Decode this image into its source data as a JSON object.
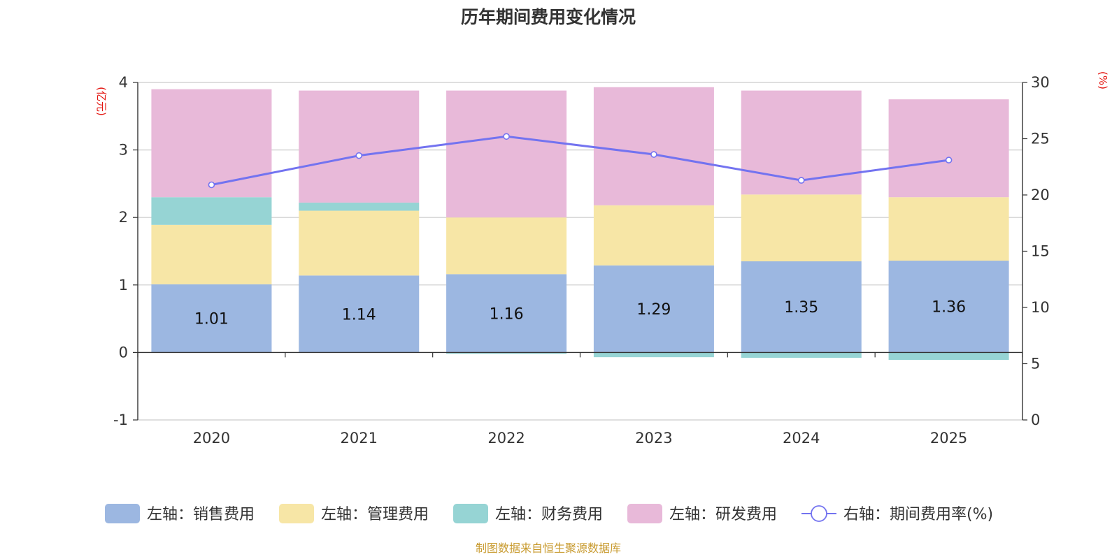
{
  "colors": {
    "sales": "#9cb7e1",
    "admin": "#f7e6a6",
    "finance": "#96d4d4",
    "rnd": "#e8b9d9",
    "rate_line": "#7373f0",
    "unit_text": "#e3130e",
    "source_text": "#c89a2e"
  },
  "chart_data": {
    "type": "bar",
    "stacked": true,
    "title": "历年期间费用变化情况",
    "categories": [
      "2020",
      "2021",
      "2022",
      "2023",
      "2024",
      "2025"
    ],
    "left_axis": {
      "unit": "(亿元)",
      "min": -1,
      "max": 4,
      "ticks": [
        "-1",
        "0",
        "1",
        "2",
        "3",
        "4"
      ]
    },
    "right_axis": {
      "unit": "(%)",
      "min": 0,
      "max": 30,
      "ticks": [
        "0",
        "5",
        "10",
        "15",
        "20",
        "25",
        "30"
      ]
    },
    "series": [
      {
        "key": "sales",
        "name": "左轴：销售费用",
        "values": [
          1.01,
          1.14,
          1.16,
          1.29,
          1.35,
          1.36
        ],
        "labels": [
          "1.01",
          "1.14",
          "1.16",
          "1.29",
          "1.35",
          "1.36"
        ]
      },
      {
        "key": "admin",
        "name": "左轴：管理费用",
        "values": [
          0.88,
          0.96,
          0.84,
          0.89,
          0.99,
          0.94
        ]
      },
      {
        "key": "finance",
        "name": "左轴：财务费用",
        "values": [
          0.41,
          0.12,
          -0.02,
          -0.07,
          -0.08,
          -0.11
        ]
      },
      {
        "key": "rnd",
        "name": "左轴：研发费用",
        "values": [
          1.6,
          1.66,
          1.88,
          1.75,
          1.54,
          1.45
        ]
      },
      {
        "key": "rate",
        "name": "右轴：期间费用率(%)",
        "type": "line",
        "axis": "right",
        "values": [
          20.9,
          23.5,
          25.2,
          23.6,
          21.3,
          23.1
        ]
      }
    ],
    "legend_position": "bottom",
    "grid": true
  },
  "source_note": "制图数据来自恒生聚源数据库"
}
